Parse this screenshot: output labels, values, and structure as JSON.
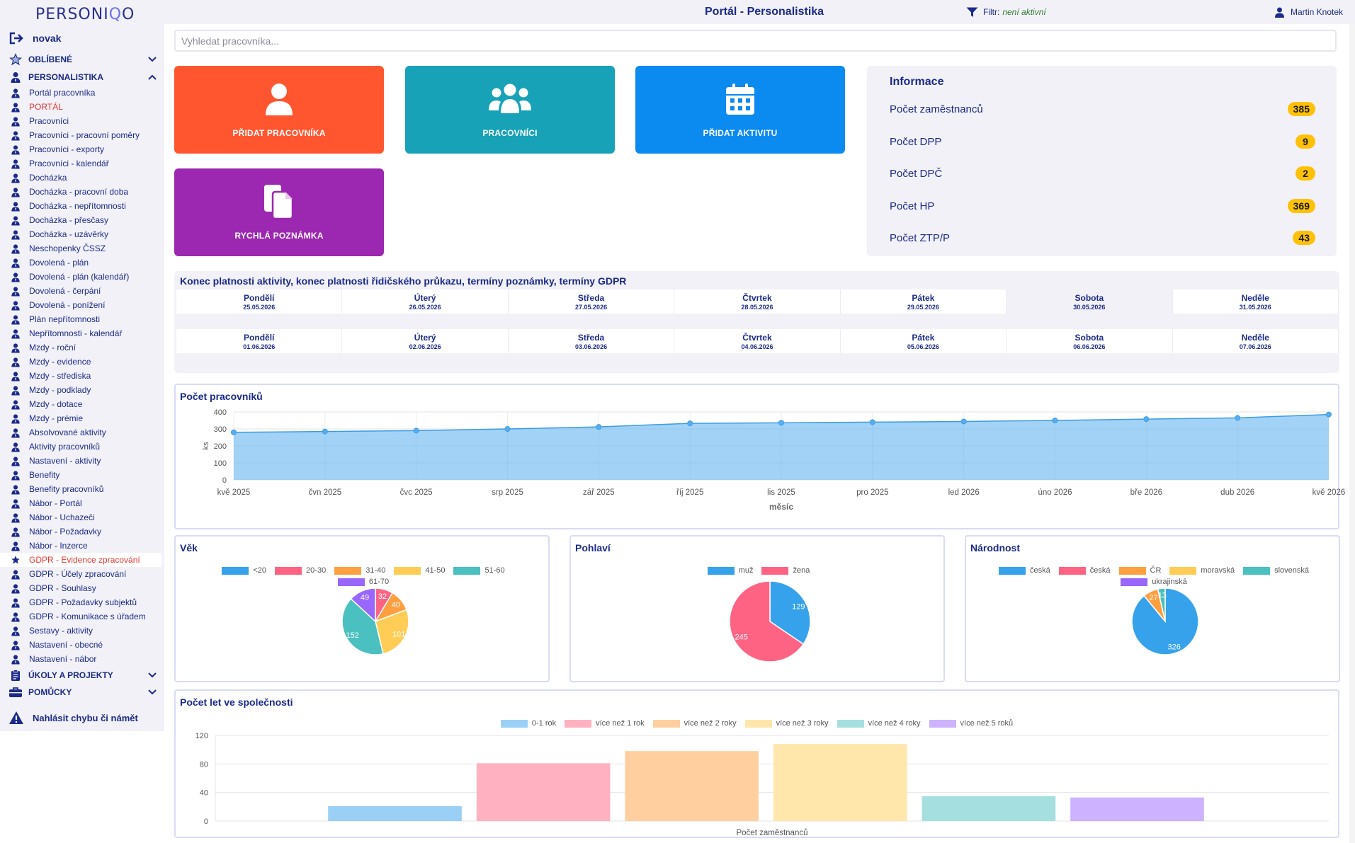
{
  "brand": {
    "left": "PERSONI",
    "accent": "Q",
    "right": "O"
  },
  "header": {
    "title": "Portál - Personalistika",
    "filter_label": "Filtr:",
    "filter_value": "není aktivní",
    "user": "Martin Knotek"
  },
  "sidebar": {
    "user": "novak",
    "favorites": "OBLÍBENÉ",
    "personal": "PERSONALISTIKA",
    "items": [
      {
        "label": "Portál pracovníka",
        "icon": "user-tie-icon"
      },
      {
        "label": "PORTÁL",
        "icon": "user-tie-icon",
        "active": true
      },
      {
        "label": "Pracovníci",
        "icon": "user-tie-icon"
      },
      {
        "label": "Pracovníci - pracovní poměry",
        "icon": "user-tie-icon"
      },
      {
        "label": "Pracovníci - exporty",
        "icon": "user-tie-icon"
      },
      {
        "label": "Pracovníci - kalendář",
        "icon": "user-tie-icon"
      },
      {
        "label": "Docházka",
        "icon": "user-tie-icon"
      },
      {
        "label": "Docházka - pracovní doba",
        "icon": "user-tie-icon"
      },
      {
        "label": "Docházka - nepřítomnosti",
        "icon": "user-tie-icon"
      },
      {
        "label": "Docházka - přesčasy",
        "icon": "user-tie-icon"
      },
      {
        "label": "Docházka - uzávěrky",
        "icon": "user-tie-icon"
      },
      {
        "label": "Neschopenky ČSSZ",
        "icon": "user-tie-icon"
      },
      {
        "label": "Dovolená - plán",
        "icon": "user-tie-icon"
      },
      {
        "label": "Dovolená - plán (kalendář)",
        "icon": "user-tie-icon"
      },
      {
        "label": "Dovolená - čerpání",
        "icon": "user-tie-icon"
      },
      {
        "label": "Dovolená - ponížení",
        "icon": "user-tie-icon"
      },
      {
        "label": "Plán nepřítomnosti",
        "icon": "user-tie-icon"
      },
      {
        "label": "Nepřítomnosti - kalendář",
        "icon": "user-tie-icon"
      },
      {
        "label": "Mzdy - roční",
        "icon": "user-tie-icon"
      },
      {
        "label": "Mzdy - evidence",
        "icon": "user-tie-icon"
      },
      {
        "label": "Mzdy - střediska",
        "icon": "user-tie-icon"
      },
      {
        "label": "Mzdy - podklady",
        "icon": "user-tie-icon"
      },
      {
        "label": "Mzdy - dotace",
        "icon": "user-tie-icon"
      },
      {
        "label": "Mzdy - prémie",
        "icon": "user-tie-icon"
      },
      {
        "label": "Absolvované aktivity",
        "icon": "user-tie-icon"
      },
      {
        "label": "Aktivity pracovníků",
        "icon": "user-tie-icon"
      },
      {
        "label": "Nastavení - aktivity",
        "icon": "user-tie-icon"
      },
      {
        "label": "Benefity",
        "icon": "user-tie-icon"
      },
      {
        "label": "Benefity pracovníků",
        "icon": "user-tie-icon"
      },
      {
        "label": "Nábor - Portál",
        "icon": "user-tie-icon"
      },
      {
        "label": "Nábor - Uchazeči",
        "icon": "user-tie-icon"
      },
      {
        "label": "Nábor - Požadavky",
        "icon": "user-tie-icon"
      },
      {
        "label": "Nábor - Inzerce",
        "icon": "user-tie-icon"
      },
      {
        "label": "GDPR - Evidence zpracování",
        "icon": "star-icon",
        "highlight": true
      },
      {
        "label": "GDPR - Účely zpracování",
        "icon": "user-tie-icon"
      },
      {
        "label": "GDPR - Souhlasy",
        "icon": "user-tie-icon"
      },
      {
        "label": "GDPR - Požadavky subjektů",
        "icon": "user-tie-icon"
      },
      {
        "label": "GDPR - Komunikace s úřadem",
        "icon": "user-tie-icon"
      },
      {
        "label": "Sestavy - aktivity",
        "icon": "user-tie-icon"
      },
      {
        "label": "Nastavení - obecné",
        "icon": "user-tie-icon"
      },
      {
        "label": "Nastavení - nábor",
        "icon": "user-tie-icon"
      }
    ],
    "tasks": "ÚKOLY A PROJEKTY",
    "tools": "POMŮCKY",
    "report": "Nahlásit chybu či námět"
  },
  "search": {
    "placeholder": "Vyhledat pracovníka..."
  },
  "tiles": [
    {
      "label": "PŘIDAT PRACOVNÍKA",
      "color": "#ff5630",
      "icon": "user-icon"
    },
    {
      "label": "PRACOVNÍCI",
      "color": "#17a2b8",
      "icon": "users-icon"
    },
    {
      "label": "PŘIDAT AKTIVITU",
      "color": "#0b8af0",
      "icon": "calendar-icon"
    },
    {
      "label": "RYCHLÁ POZNÁMKA",
      "color": "#9c27b0",
      "icon": "copy-icon"
    }
  ],
  "info": {
    "title": "Informace",
    "rows": [
      {
        "label": "Počet zaměstnanců",
        "value": "385"
      },
      {
        "label": "Počet DPP",
        "value": "9"
      },
      {
        "label": "Počet DPČ",
        "value": "2"
      },
      {
        "label": "Počet HP",
        "value": "369"
      },
      {
        "label": "Počet ZTP/P",
        "value": "43"
      }
    ]
  },
  "calendar": {
    "title": "Konec platnosti aktivity, konec platnosti řidičského průkazu, termíny poznámky, termíny GDPR",
    "weeks": [
      [
        {
          "day": "Pondělí",
          "date": "25.05.2026"
        },
        {
          "day": "Úterý",
          "date": "26.05.2026"
        },
        {
          "day": "Středa",
          "date": "27.05.2026"
        },
        {
          "day": "Čtvrtek",
          "date": "28.05.2026"
        },
        {
          "day": "Pátek",
          "date": "29.05.2026"
        },
        {
          "day": "Sobota",
          "date": "30.05.2026",
          "muted": true
        },
        {
          "day": "Neděle",
          "date": "31.05.2026"
        }
      ],
      [
        {
          "day": "Pondělí",
          "date": "01.06.2026"
        },
        {
          "day": "Úterý",
          "date": "02.06.2026"
        },
        {
          "day": "Středa",
          "date": "03.06.2026"
        },
        {
          "day": "Čtvrtek",
          "date": "04.06.2026"
        },
        {
          "day": "Pátek",
          "date": "05.06.2026"
        },
        {
          "day": "Sobota",
          "date": "06.06.2026"
        },
        {
          "day": "Neděle",
          "date": "07.06.2026"
        }
      ]
    ]
  },
  "chart_data": [
    {
      "type": "area",
      "title": "Počet pracovníků",
      "xlabel": "měsíc",
      "ylabel": "ks",
      "categories": [
        "kvě 2025",
        "čvn 2025",
        "čvc 2025",
        "srp 2025",
        "zář 2025",
        "říj 2025",
        "lis 2025",
        "pro 2025",
        "led 2026",
        "úno 2026",
        "bře 2026",
        "dub 2026",
        "kvě 2026"
      ],
      "values": [
        280,
        285,
        290,
        300,
        312,
        333,
        336,
        340,
        344,
        350,
        358,
        365,
        385
      ],
      "yticks": [
        0,
        100,
        200,
        300,
        400
      ],
      "ylim": [
        0,
        400
      ],
      "color": "#56aef0"
    },
    {
      "type": "pie",
      "title": "Věk",
      "labels": [
        "<20",
        "20-30",
        "31-40",
        "41-50",
        "51-60",
        "61-70"
      ],
      "values": [
        0,
        32,
        40,
        101,
        152,
        49
      ],
      "display": [
        "",
        "32",
        "40",
        "101",
        "152",
        "49"
      ],
      "colors": [
        "#36a2eb",
        "#ff6384",
        "#ff9f40",
        "#ffcd56",
        "#4bc0c0",
        "#9966ff"
      ]
    },
    {
      "type": "pie",
      "title": "Pohlaví",
      "labels": [
        "muž",
        "žena"
      ],
      "values": [
        129,
        245
      ],
      "display": [
        "129",
        "245"
      ],
      "colors": [
        "#36a2eb",
        "#ff6384"
      ]
    },
    {
      "type": "pie",
      "title": "Národnost",
      "labels": [
        "česká",
        "česká",
        "ČR",
        "moravská",
        "slovenská",
        "ukrajinská"
      ],
      "values": [
        326,
        0,
        27,
        0,
        13,
        0
      ],
      "display": [
        "326",
        "",
        "27",
        "",
        "13",
        ""
      ],
      "colors": [
        "#36a2eb",
        "#ff6384",
        "#ff9f40",
        "#ffcd56",
        "#4bc0c0",
        "#9966ff"
      ]
    },
    {
      "type": "bar",
      "title": "Počet let ve společnosti",
      "xlabel": "Počet zaměstnanců",
      "series": [
        {
          "name": "0-1 rok",
          "value": 21,
          "color": "#9ad0f5"
        },
        {
          "name": "více než 1 rok",
          "value": 81,
          "color": "#ffb1c1"
        },
        {
          "name": "více než 2 roky",
          "value": 98,
          "color": "#ffcf9f"
        },
        {
          "name": "více než 3 roky",
          "value": 108,
          "color": "#ffe6aa"
        },
        {
          "name": "více než 4 roky",
          "value": 35,
          "color": "#a5dfdf"
        },
        {
          "name": "více než 5 roků",
          "value": 33,
          "color": "#ccb2ff"
        }
      ],
      "yticks": [
        0,
        40,
        80,
        120
      ],
      "ylim": [
        0,
        120
      ]
    }
  ]
}
